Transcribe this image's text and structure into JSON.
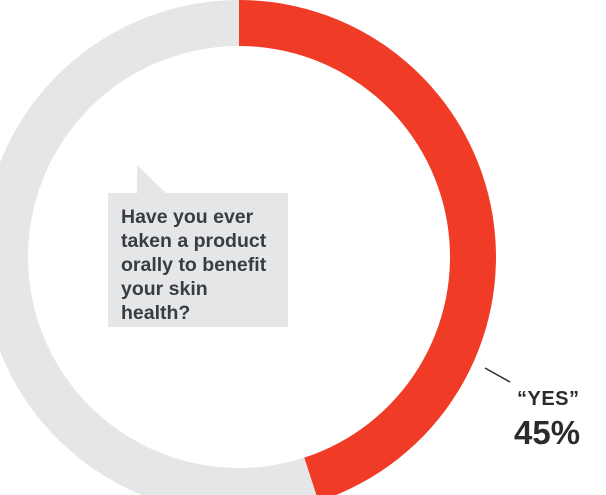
{
  "chart_data": {
    "type": "pie",
    "style": "donut",
    "question": "Have you ever taken a product orally to benefit your skin health?",
    "slices": [
      {
        "label": "“YES”",
        "value": 45,
        "display": "45%",
        "color": "#f03c27"
      },
      {
        "label": "",
        "value": 55,
        "color": "#e5e6e8"
      }
    ]
  }
}
